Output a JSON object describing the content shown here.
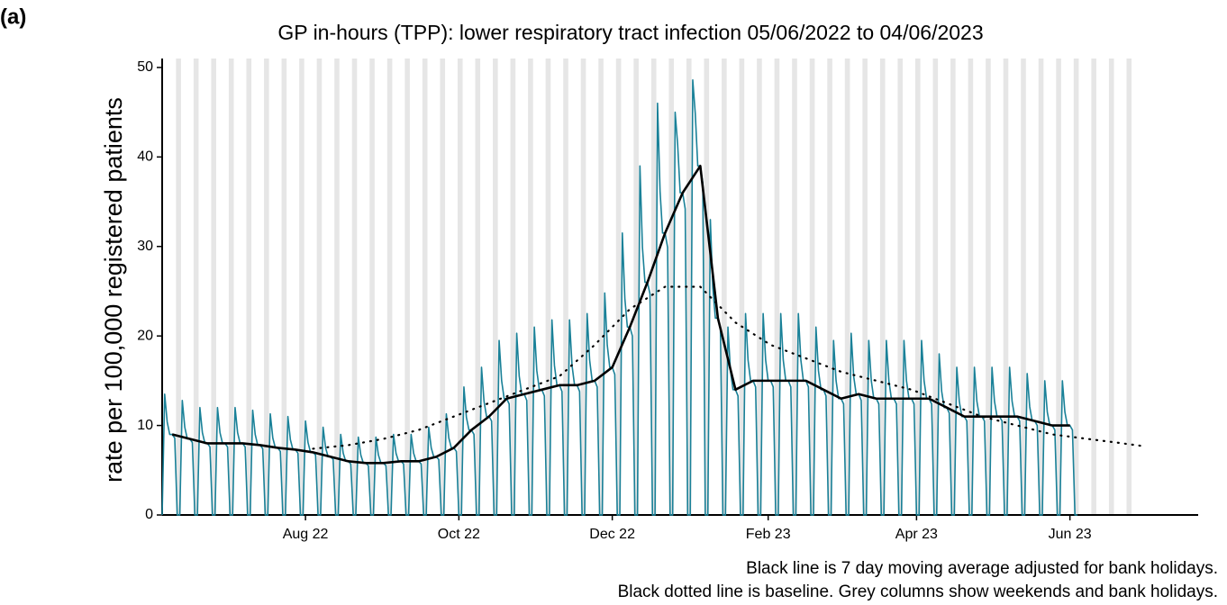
{
  "chart_data": {
    "type": "line",
    "panel_label": "(a)",
    "title": "GP in-hours (TPP): lower respiratory tract infection 05/06/2022 to 04/06/2023",
    "ylabel": "rate per 100,000 registered patients",
    "notes": [
      "Black line is 7 day moving average adjusted for bank holidays.",
      "Black dotted line is baseline. Grey columns show weekends and bank holidays."
    ],
    "xlim": [
      0,
      412
    ],
    "xticks": [
      {
        "value": 57,
        "label": "Aug 22"
      },
      {
        "value": 118,
        "label": "Oct 22"
      },
      {
        "value": 179,
        "label": "Dec 22"
      },
      {
        "value": 241,
        "label": "Feb 23"
      },
      {
        "value": 300,
        "label": "Apr 23"
      },
      {
        "value": 361,
        "label": "Jun 23"
      }
    ],
    "ylim": [
      0,
      51
    ],
    "yticks": [
      0,
      10,
      20,
      30,
      40,
      50
    ],
    "weekend_color": "#e6e6e6",
    "x": [
      0,
      1,
      2,
      3,
      4,
      5,
      6,
      7,
      8,
      9,
      10,
      11,
      12,
      13,
      14,
      15,
      16,
      17,
      18,
      19,
      20,
      21,
      22,
      23,
      24,
      25,
      26,
      27,
      28,
      29,
      30,
      31,
      32,
      33,
      34,
      35,
      36,
      37,
      38,
      39,
      40,
      41,
      42,
      43,
      44,
      45,
      46,
      47,
      48,
      49,
      50,
      51,
      52,
      53,
      54,
      55,
      56,
      57,
      58,
      59,
      60,
      61,
      62,
      63,
      64,
      65,
      66,
      67,
      68,
      69,
      70,
      71,
      72,
      73,
      74,
      75,
      76,
      77,
      78,
      79,
      80,
      81,
      82,
      83,
      84,
      85,
      86,
      87,
      88,
      89,
      90,
      91,
      92,
      93,
      94,
      95,
      96,
      97,
      98,
      99,
      100,
      101,
      102,
      103,
      104,
      105,
      106,
      107,
      108,
      109,
      110,
      111,
      112,
      113,
      114,
      115,
      116,
      117,
      118,
      119,
      120,
      121,
      122,
      123,
      124,
      125,
      126,
      127,
      128,
      129,
      130,
      131,
      132,
      133,
      134,
      135,
      136,
      137,
      138,
      139,
      140,
      141,
      142,
      143,
      144,
      145,
      146,
      147,
      148,
      149,
      150,
      151,
      152,
      153,
      154,
      155,
      156,
      157,
      158,
      159,
      160,
      161,
      162,
      163,
      164,
      165,
      166,
      167,
      168,
      169,
      170,
      171,
      172,
      173,
      174,
      175,
      176,
      177,
      178,
      179,
      180,
      181,
      182,
      183,
      184,
      185,
      186,
      187,
      188,
      189,
      190,
      191,
      192,
      193,
      194,
      195,
      196,
      197,
      198,
      199,
      200,
      201,
      202,
      203,
      204,
      205,
      206,
      207,
      208,
      209,
      210,
      211,
      212,
      213,
      214,
      215,
      216,
      217,
      218,
      219,
      220,
      221,
      222,
      223,
      224,
      225,
      226,
      227,
      228,
      229,
      230,
      231,
      232,
      233,
      234,
      235,
      236,
      237,
      238,
      239,
      240,
      241,
      242,
      243,
      244,
      245,
      246,
      247,
      248,
      249,
      250,
      251,
      252,
      253,
      254,
      255,
      256,
      257,
      258,
      259,
      260,
      261,
      262,
      263,
      264,
      265,
      266,
      267,
      268,
      269,
      270,
      271,
      272,
      273,
      274,
      275,
      276,
      277,
      278,
      279,
      280,
      281,
      282,
      283,
      284,
      285,
      286,
      287,
      288,
      289,
      290,
      291,
      292,
      293,
      294,
      295,
      296,
      297,
      298,
      299,
      300,
      301,
      302,
      303,
      304,
      305,
      306,
      307,
      308,
      309,
      310,
      311,
      312,
      313,
      314,
      315,
      316,
      317,
      318,
      319,
      320,
      321,
      322,
      323,
      324,
      325,
      326,
      327,
      328,
      329,
      330,
      331,
      332,
      333,
      334,
      335,
      336,
      337,
      338,
      339,
      340,
      341,
      342,
      343,
      344,
      345,
      346,
      347,
      348,
      349,
      350,
      351,
      352,
      353,
      354,
      355,
      356,
      357,
      358,
      359,
      360,
      361,
      362,
      363,
      364
    ],
    "series": [
      {
        "color": "#1a8198",
        "style": "solid",
        "width": 1.6,
        "values": [
          0,
          13.5,
          10.4,
          9,
          9,
          8.6,
          0,
          0,
          12.8,
          9.8,
          8.5,
          8.5,
          8.1,
          0,
          0,
          12,
          9.2,
          8,
          8,
          7.6,
          0,
          0,
          12,
          9.2,
          8,
          8,
          7.6,
          0,
          0,
          12,
          9.2,
          8,
          8,
          7.6,
          0,
          0,
          11.7,
          9,
          7.8,
          7.8,
          7.4,
          0,
          0,
          11.3,
          8.6,
          7.5,
          7.5,
          7.1,
          0,
          0,
          11,
          8.4,
          7.3,
          7.3,
          6.9,
          0,
          0,
          10.5,
          8.1,
          7,
          7,
          6.7,
          0,
          0,
          9.8,
          7.5,
          6.5,
          6.5,
          6.2,
          0,
          0,
          9,
          6.9,
          6,
          6,
          5.7,
          0,
          0,
          8.7,
          6.7,
          5.8,
          5.8,
          5.5,
          0,
          0,
          8.7,
          6.7,
          5.8,
          5.8,
          5.5,
          0,
          0,
          9,
          6.9,
          6,
          6,
          5.7,
          0,
          0,
          9,
          6.9,
          6,
          6,
          5.7,
          0,
          0,
          9.8,
          7.5,
          6.5,
          6.5,
          6.2,
          0,
          0,
          11.3,
          8.6,
          7.5,
          7.5,
          7.1,
          0,
          0,
          14.3,
          10.9,
          9.5,
          9.5,
          9,
          0,
          0,
          16.5,
          12.7,
          11,
          11,
          10.5,
          0,
          0,
          19.5,
          15,
          13,
          13,
          12.4,
          0,
          0,
          20.3,
          15.5,
          13.5,
          13.5,
          12.8,
          0,
          0,
          21,
          16.1,
          14,
          14,
          13.3,
          0,
          0,
          21.8,
          16.7,
          14.5,
          14.5,
          13.8,
          0,
          0,
          21.8,
          16.7,
          14.5,
          14.5,
          13.8,
          0,
          0,
          22.5,
          17.3,
          15,
          15,
          14.3,
          0,
          0,
          24.8,
          19,
          16.5,
          16.5,
          15.7,
          0,
          0,
          31.5,
          24.2,
          21,
          21,
          20,
          0,
          0,
          39,
          29.9,
          26,
          26,
          24.7,
          0,
          0,
          46,
          36.2,
          31.5,
          31.5,
          29.9,
          0,
          0,
          45,
          41.4,
          36,
          36,
          34.2,
          0,
          0,
          48.6,
          44.9,
          39,
          39,
          37.1,
          0,
          0,
          33,
          25.3,
          22,
          22,
          20.9,
          0,
          0,
          21,
          16.1,
          14,
          14,
          13.3,
          0,
          0,
          22.5,
          17.3,
          15,
          15,
          14.3,
          0,
          0,
          22.5,
          17.3,
          15,
          15,
          14.3,
          0,
          0,
          22.5,
          17.3,
          15,
          15,
          14.3,
          0,
          0,
          22.5,
          17.3,
          15,
          15,
          14.3,
          0,
          0,
          21,
          16.1,
          14,
          14,
          13.3,
          0,
          0,
          19.5,
          15,
          13,
          13,
          12.4,
          0,
          0,
          20.3,
          15.5,
          13.5,
          13.5,
          12.8,
          0,
          0,
          19.5,
          15,
          13,
          13,
          12.4,
          0,
          0,
          19.5,
          15,
          13,
          13,
          12.4,
          0,
          0,
          19.5,
          15,
          13,
          13,
          12.4,
          0,
          0,
          19.5,
          15,
          13,
          13,
          12.4,
          0,
          0,
          18,
          13.8,
          12,
          12,
          11.4,
          0,
          0,
          16.5,
          12.7,
          11,
          11,
          10.5,
          0,
          0,
          16.5,
          12.7,
          11,
          11,
          10.5,
          0,
          0,
          16.5,
          12.7,
          11,
          11,
          10.5,
          0,
          0,
          16.5,
          12.7,
          11,
          11,
          10.5,
          0,
          0,
          15.8,
          12.1,
          10.5,
          10.5,
          10,
          0,
          0,
          15,
          11.5,
          10,
          10,
          9.5,
          0,
          0,
          15,
          11.5,
          10,
          10,
          9.5,
          0,
          0
        ]
      },
      {
        "color": "#000000",
        "style": "solid",
        "width": 2.6,
        "x": [
          4,
          11,
          18,
          25,
          32,
          39,
          46,
          53,
          60,
          67,
          74,
          81,
          88,
          95,
          102,
          109,
          116,
          123,
          130,
          137,
          144,
          151,
          158,
          165,
          172,
          179,
          186,
          193,
          200,
          207,
          214,
          221,
          228,
          235,
          242,
          249,
          256,
          263,
          270,
          277,
          284,
          291,
          298,
          305,
          312,
          319,
          326,
          333,
          340,
          347,
          354,
          361
        ],
        "values": [
          9,
          8.5,
          8,
          8,
          8,
          7.8,
          7.5,
          7.3,
          7,
          6.5,
          6,
          5.8,
          5.8,
          6,
          6,
          6.5,
          7.5,
          9.5,
          11,
          13,
          13.5,
          14,
          14.5,
          14.5,
          15,
          16.5,
          21,
          26,
          31.5,
          36,
          39,
          22,
          14,
          15,
          15,
          15,
          15,
          14,
          13,
          13.5,
          13,
          13,
          13,
          13,
          12,
          11,
          11,
          11,
          11,
          10.5,
          10,
          10
        ]
      },
      {
        "color": "#000000",
        "style": "dotted",
        "width": 2.2,
        "x": [
          60,
          74,
          88,
          102,
          116,
          130,
          144,
          158,
          172,
          186,
          200,
          214,
          228,
          242,
          256,
          270,
          284,
          298,
          312,
          326,
          340,
          354,
          368,
          382,
          390
        ],
        "values": [
          7.4,
          7.8,
          8.5,
          9.5,
          11,
          12.5,
          14,
          15.5,
          19,
          23,
          25.5,
          25.5,
          21.5,
          19,
          17.5,
          16,
          15,
          14,
          12.5,
          11,
          10,
          9,
          8.5,
          8,
          7.7
        ]
      }
    ]
  }
}
